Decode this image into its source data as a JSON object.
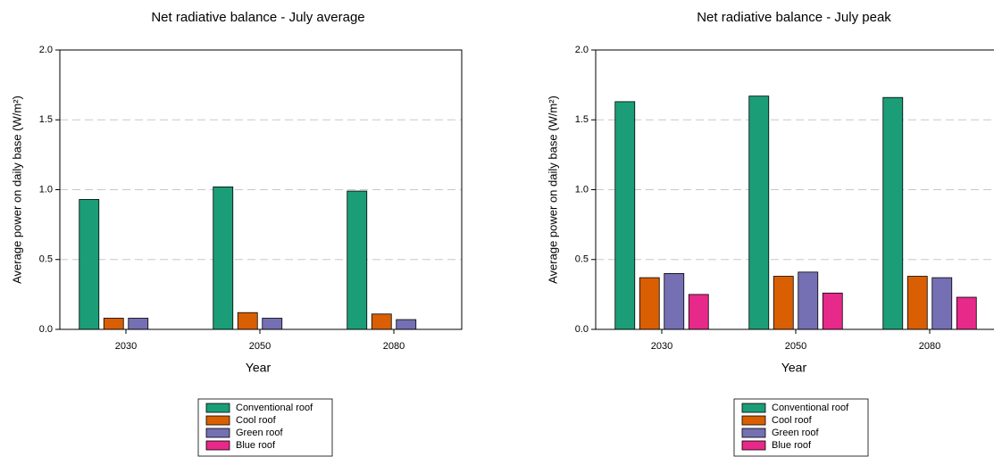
{
  "chart_data": [
    {
      "type": "bar",
      "title": "Net radiative balance - July average",
      "xlabel": "Year",
      "ylabel": "Average power on daily base (W/m²)",
      "categories": [
        "2030",
        "2050",
        "2080"
      ],
      "series": [
        {
          "name": "Conventional roof",
          "color": "#1b9e77",
          "values": [
            0.93,
            1.02,
            0.99
          ]
        },
        {
          "name": "Cool roof",
          "color": "#d95f02",
          "values": [
            0.08,
            0.12,
            0.11
          ]
        },
        {
          "name": "Green roof",
          "color": "#7570b3",
          "values": [
            0.08,
            0.08,
            0.07
          ]
        },
        {
          "name": "Blue roof",
          "color": "#e7298a",
          "values": [
            0,
            0,
            0
          ]
        }
      ],
      "ylim": [
        0,
        2
      ],
      "yticks": [
        {
          "value": 0,
          "label": "0.0"
        },
        0.5,
        {
          "value": 1,
          "label": "1.0"
        },
        1.5,
        {
          "value": 2,
          "label": "2.0"
        }
      ],
      "grid": true
    },
    {
      "type": "bar",
      "title": "Net radiative balance - July peak",
      "xlabel": "Year",
      "ylabel": "Average power on daily base (W/m²)",
      "categories": [
        "2030",
        "2050",
        "2080"
      ],
      "series": [
        {
          "name": "Conventional roof",
          "color": "#1b9e77",
          "values": [
            1.63,
            1.67,
            1.66
          ]
        },
        {
          "name": "Cool roof",
          "color": "#d95f02",
          "values": [
            0.37,
            0.38,
            0.38
          ]
        },
        {
          "name": "Green roof",
          "color": "#7570b3",
          "values": [
            0.4,
            0.41,
            0.37
          ]
        },
        {
          "name": "Blue roof",
          "color": "#e7298a",
          "values": [
            0.25,
            0.26,
            0.23
          ]
        }
      ],
      "ylim": [
        0,
        2
      ],
      "yticks": [
        {
          "value": 0,
          "label": "0.0"
        },
        0.5,
        {
          "value": 1,
          "label": "1.0"
        },
        1.5,
        {
          "value": 2,
          "label": "2.0"
        }
      ],
      "grid": true
    }
  ]
}
